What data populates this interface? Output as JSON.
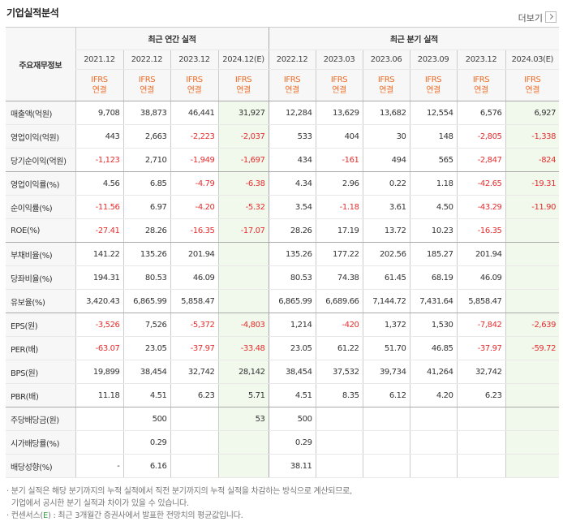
{
  "title": "기업실적분석",
  "more_label": "더보기",
  "header": {
    "row_label": "주요재무정보",
    "annual_label": "최근 연간 실적",
    "quarter_label": "최근 분기 실적",
    "annual_periods": [
      "2021.12",
      "2022.12",
      "2023.12",
      "2024.12(E)"
    ],
    "quarter_periods": [
      "2022.12",
      "2023.03",
      "2023.06",
      "2023.09",
      "2023.12",
      "2024.03(E)"
    ],
    "basis_top": "IFRS",
    "basis_bottom": "연결"
  },
  "rows": [
    {
      "label": "매출액(억원)",
      "values": [
        "9,708",
        "38,873",
        "46,441",
        "31,927",
        "12,284",
        "13,629",
        "13,682",
        "12,554",
        "6,576",
        "6,927"
      ]
    },
    {
      "label": "영업이익(억원)",
      "values": [
        "443",
        "2,663",
        "-2,223",
        "-2,037",
        "533",
        "404",
        "30",
        "148",
        "-2,805",
        "-1,338"
      ]
    },
    {
      "label": "당기순이익(억원)",
      "values": [
        "-1,123",
        "2,710",
        "-1,949",
        "-1,697",
        "434",
        "-161",
        "494",
        "565",
        "-2,847",
        "-824"
      ]
    },
    {
      "label": "영업이익률(%)",
      "values": [
        "4.56",
        "6.85",
        "-4.79",
        "-6.38",
        "4.34",
        "2.96",
        "0.22",
        "1.18",
        "-42.65",
        "-19.31"
      ]
    },
    {
      "label": "순이익률(%)",
      "values": [
        "-11.56",
        "6.97",
        "-4.20",
        "-5.32",
        "3.54",
        "-1.18",
        "3.61",
        "4.50",
        "-43.29",
        "-11.90"
      ]
    },
    {
      "label": "ROE(%)",
      "values": [
        "-27.41",
        "28.26",
        "-16.35",
        "-17.07",
        "28.26",
        "17.19",
        "13.72",
        "10.23",
        "-16.35",
        ""
      ]
    },
    {
      "label": "부채비율(%)",
      "values": [
        "141.22",
        "135.26",
        "201.94",
        "",
        "135.26",
        "177.22",
        "202.56",
        "185.27",
        "201.94",
        ""
      ]
    },
    {
      "label": "당좌비율(%)",
      "values": [
        "194.31",
        "80.53",
        "46.09",
        "",
        "80.53",
        "74.38",
        "61.45",
        "68.19",
        "46.09",
        ""
      ]
    },
    {
      "label": "유보율(%)",
      "values": [
        "3,420.43",
        "6,865.99",
        "5,858.47",
        "",
        "6,865.99",
        "6,689.66",
        "7,144.72",
        "7,431.64",
        "5,858.47",
        ""
      ]
    },
    {
      "label": "EPS(원)",
      "values": [
        "-3,526",
        "7,526",
        "-5,372",
        "-4,803",
        "1,214",
        "-420",
        "1,372",
        "1,530",
        "-7,842",
        "-2,639"
      ]
    },
    {
      "label": "PER(배)",
      "values": [
        "-63.07",
        "23.05",
        "-37.97",
        "-33.48",
        "23.05",
        "61.22",
        "51.70",
        "46.85",
        "-37.97",
        "-59.72"
      ]
    },
    {
      "label": "BPS(원)",
      "values": [
        "19,899",
        "38,454",
        "32,742",
        "28,142",
        "38,454",
        "37,532",
        "39,734",
        "41,264",
        "32,742",
        ""
      ]
    },
    {
      "label": "PBR(배)",
      "values": [
        "11.18",
        "4.51",
        "6.23",
        "5.71",
        "4.51",
        "8.35",
        "6.12",
        "4.20",
        "6.23",
        ""
      ]
    },
    {
      "label": "주당배당금(원)",
      "values": [
        "",
        "500",
        "",
        "53",
        "500",
        "",
        "",
        "",
        "",
        ""
      ]
    },
    {
      "label": "시가배당률(%)",
      "values": [
        "",
        "0.29",
        "",
        "",
        "0.29",
        "",
        "",
        "",
        "",
        ""
      ]
    },
    {
      "label": "배당성향(%)",
      "values": [
        "-",
        "6.16",
        "",
        "",
        "38.11",
        "",
        "",
        "",
        "",
        ""
      ]
    }
  ],
  "notes": {
    "line1": "· 분기 실적은 해당 분기까지의 누적 실적에서 직전 분기까지의 누적 실적을 차감하는 방식으로 계산되므로,",
    "line2": "기업에서 공시한 분기 실적과 차이가 있을 수 있습니다.",
    "line3_pre": "· 컨센서스(",
    "line3_e": "E",
    "line3_post": ") : 최근 3개월간 증권사에서 발표한 전망치의 평균값입니다."
  },
  "colors": {
    "negative": "#e52e2e",
    "basis": "#ed6c27",
    "estimate_bg": "#f1f8ec"
  }
}
